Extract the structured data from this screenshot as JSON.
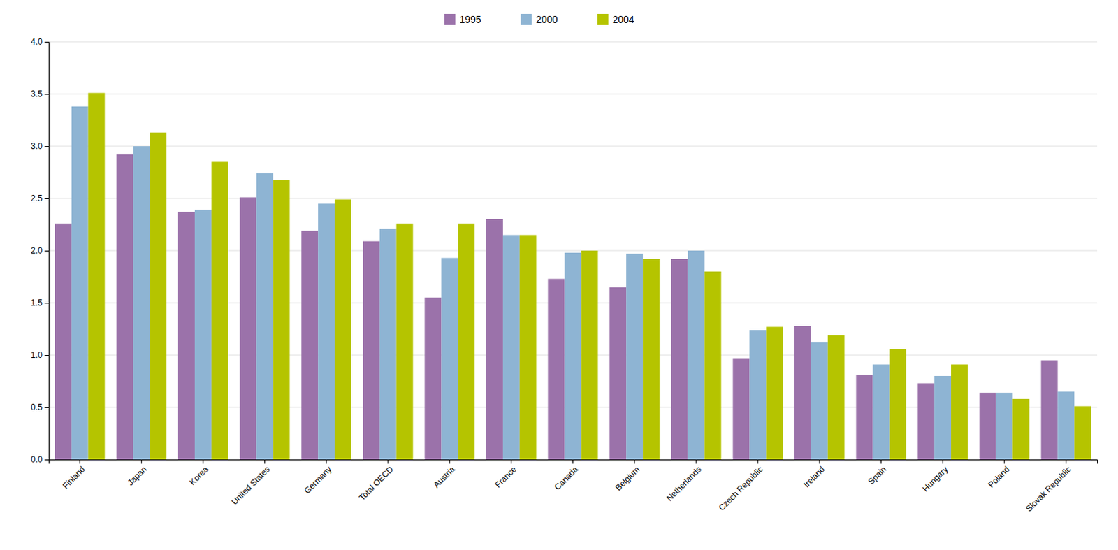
{
  "chart_data": {
    "type": "bar",
    "categories": [
      "Finland",
      "Japan",
      "Korea",
      "United States",
      "Germany",
      "Total OECD",
      "Austria",
      "France",
      "Canada",
      "Belgium",
      "Netherlands",
      "Czech Republic",
      "Ireland",
      "Spain",
      "Hungary",
      "Poland",
      "Slovak Republic"
    ],
    "series": [
      {
        "name": "1995",
        "color": "#9b72aa",
        "values": [
          2.26,
          2.92,
          2.37,
          2.51,
          2.19,
          2.09,
          1.55,
          2.3,
          1.73,
          1.65,
          1.92,
          0.97,
          1.28,
          0.81,
          0.73,
          0.64,
          0.95
        ]
      },
      {
        "name": "2000",
        "color": "#8eb4d3",
        "values": [
          3.38,
          3.0,
          2.39,
          2.74,
          2.45,
          2.21,
          1.93,
          2.15,
          1.98,
          1.97,
          2.0,
          1.24,
          1.12,
          0.91,
          0.8,
          0.64,
          0.65
        ]
      },
      {
        "name": "2004",
        "color": "#b5c400",
        "values": [
          3.51,
          3.13,
          2.85,
          2.68,
          2.49,
          2.26,
          2.26,
          2.15,
          2.0,
          1.92,
          1.8,
          1.27,
          1.19,
          1.06,
          0.91,
          0.58,
          0.51
        ]
      }
    ],
    "ylim": [
      0,
      4.0
    ],
    "yticks": [
      {
        "value": 0,
        "label": "0.0"
      },
      0.5,
      {
        "value": 1,
        "label": "1.0"
      },
      1.5,
      {
        "value": 2,
        "label": "2.0"
      },
      2.5,
      {
        "value": 3,
        "label": "3.0"
      },
      3.5,
      {
        "value": 4,
        "label": "4.0"
      }
    ],
    "grid": true,
    "legend": "top"
  }
}
